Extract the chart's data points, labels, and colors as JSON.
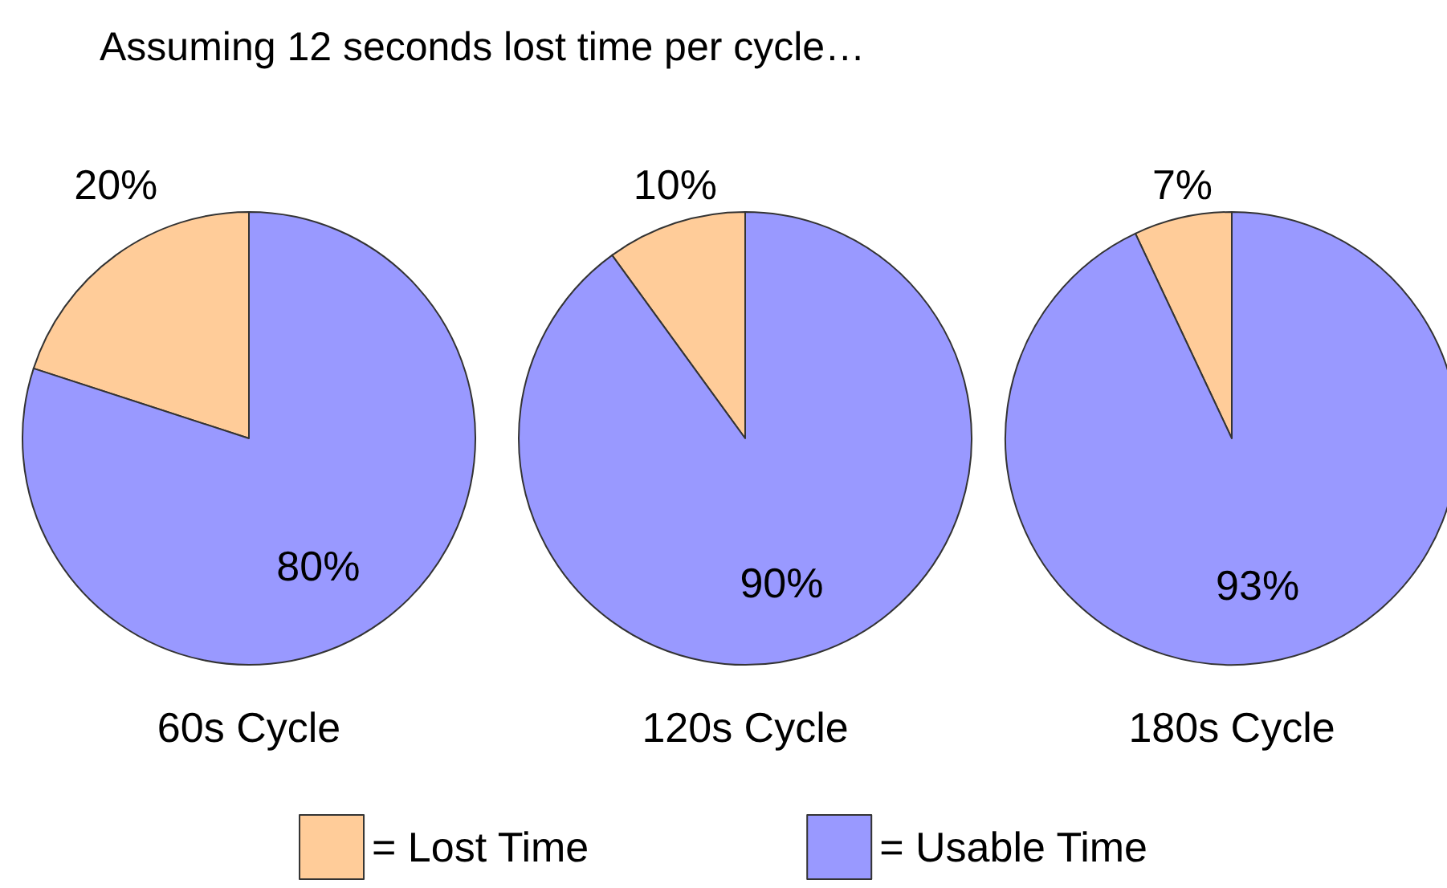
{
  "chart_data": [
    {
      "type": "pie",
      "title": "Assuming 12 seconds lost time per cycle…",
      "xlabel": "60s Cycle",
      "categories": [
        "= Lost Time",
        "= Usable Time"
      ],
      "values": [
        20,
        80
      ],
      "value_labels": [
        "20%",
        "80%"
      ],
      "colors": [
        "#ffcc99",
        "#9999ff"
      ],
      "legend": "bottom"
    },
    {
      "type": "pie",
      "xlabel": "120s Cycle",
      "categories": [
        null,
        null
      ],
      "values": [
        10,
        90
      ],
      "value_labels": [
        "10%",
        "90%"
      ],
      "colors": [
        "#ffcc99",
        "#9999ff"
      ]
    },
    {
      "type": "pie",
      "xlabel": "180s Cycle",
      "categories": [
        null,
        null
      ],
      "values": [
        7,
        93
      ],
      "value_labels": [
        "7%",
        "93%"
      ],
      "colors": [
        "#ffcc99",
        "#9999ff"
      ]
    }
  ]
}
